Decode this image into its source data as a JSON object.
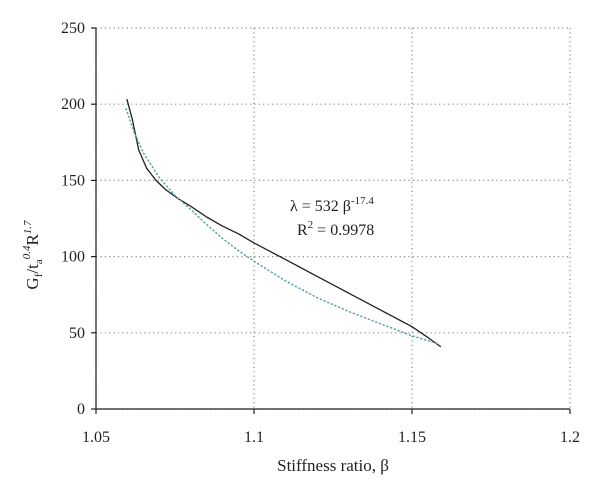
{
  "chart_data": {
    "type": "line",
    "xlabel": "Stiffness ratio, β",
    "ylabel": "Gf/ta0.4R1.7",
    "ylabel_parts": {
      "G": "G",
      "f": "f",
      "slash_t": "/t",
      "a": "a",
      "exp1": "0.4",
      "R": "R",
      "exp2": "1.7"
    },
    "xlim": [
      1.05,
      1.2
    ],
    "ylim": [
      0,
      250
    ],
    "xticks": [
      1.05,
      1.1,
      1.15,
      1.2
    ],
    "yticks": [
      0,
      50,
      100,
      150,
      200,
      250
    ],
    "xtick_labels": [
      "1.05",
      "1.1",
      "1.15",
      "1.2"
    ],
    "ytick_labels": [
      "0",
      "50",
      "100",
      "150",
      "200",
      "250"
    ],
    "grid": true,
    "annotation": {
      "equation_main": "λ = 532 β",
      "equation_exp": "-17.4",
      "r2_prefix": "R",
      "r2_exp": "2",
      "r2_suffix": " = 0.9978"
    },
    "series": [
      {
        "style": "solid",
        "color": "#231f20",
        "x": [
          1.0598,
          1.0615,
          1.0635,
          1.066,
          1.069,
          1.072,
          1.076,
          1.08,
          1.085,
          1.09,
          1.095,
          1.1,
          1.11,
          1.12,
          1.13,
          1.14,
          1.15,
          1.155,
          1.159
        ],
        "y": [
          203,
          190,
          170,
          158,
          150,
          144,
          138,
          133,
          126,
          120,
          115,
          109,
          98,
          87,
          76,
          65,
          54,
          47,
          41
        ]
      },
      {
        "style": "dotted",
        "color": "#5aa0a8",
        "x": [
          1.0595,
          1.062,
          1.065,
          1.07,
          1.075,
          1.08,
          1.085,
          1.09,
          1.095,
          1.1,
          1.11,
          1.12,
          1.13,
          1.14,
          1.15,
          1.158
        ],
        "y": [
          197,
          182,
          168,
          152,
          140,
          131,
          121,
          112,
          104,
          97,
          84,
          73,
          64,
          56,
          48,
          43
        ]
      }
    ]
  }
}
